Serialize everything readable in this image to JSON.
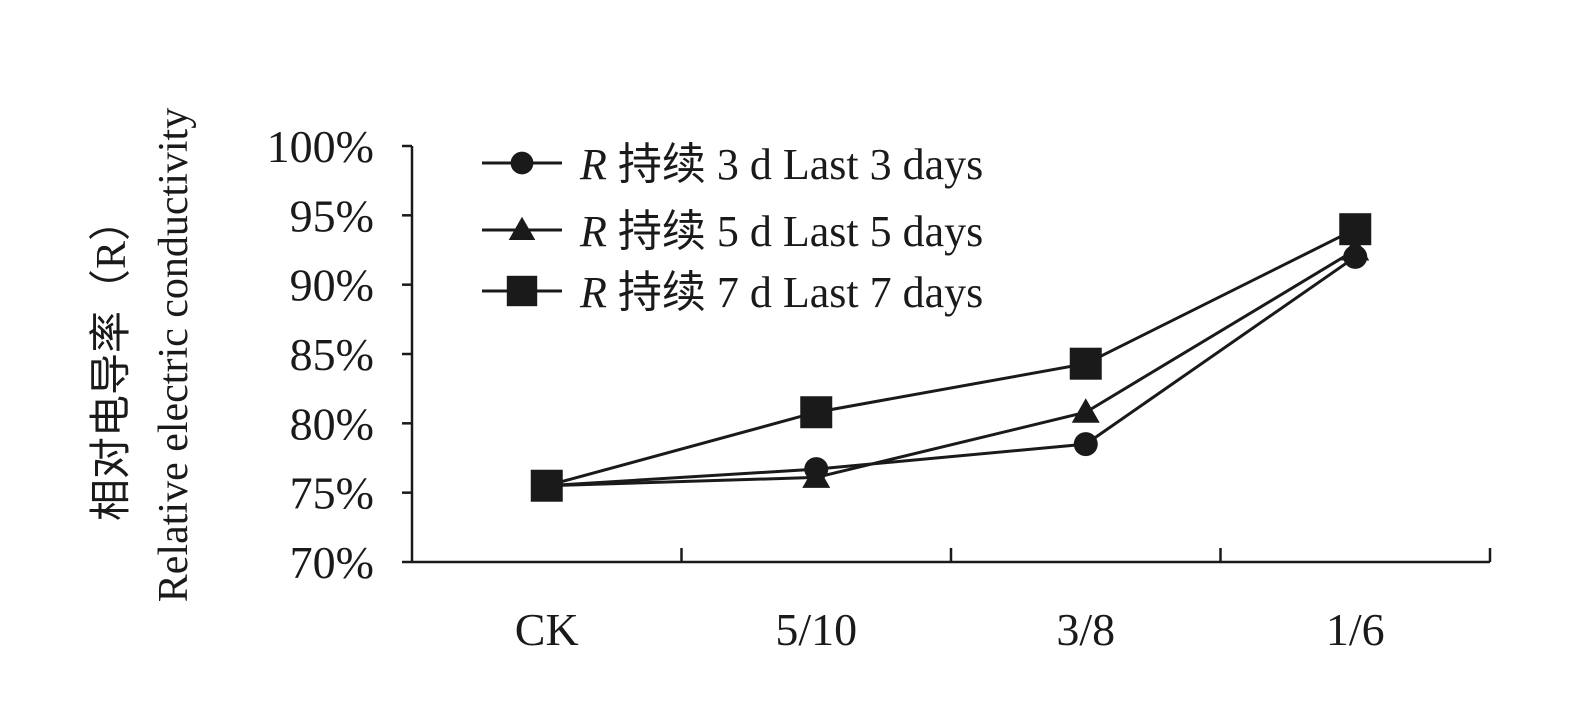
{
  "chart_data": {
    "type": "line",
    "categories": [
      "CK",
      "5/10",
      "3/8",
      "1/6"
    ],
    "ylabel_cn": "相对电导率（R）",
    "ylabel_en": "Relative electric conductivity",
    "ylim": [
      0.7,
      1.0
    ],
    "y_ticks": [
      "70%",
      "75%",
      "80%",
      "85%",
      "90%",
      "95%",
      "100%"
    ],
    "y_tick_values": [
      0.7,
      0.75,
      0.8,
      0.85,
      0.9,
      0.95,
      1.0
    ],
    "grid": false,
    "legend_position": "top-left",
    "series": [
      {
        "name_var": "R",
        "name_rest": " 持续 3 d Last 3 days",
        "marker": "circle",
        "values": [
          0.755,
          0.767,
          0.785,
          0.92
        ]
      },
      {
        "name_var": "R",
        "name_rest": " 持续 5 d Last 5 days",
        "marker": "triangle",
        "values": [
          0.755,
          0.761,
          0.808,
          0.925
        ]
      },
      {
        "name_var": "R",
        "name_rest": " 持续 7 d Last 7 days",
        "marker": "square",
        "values": [
          0.755,
          0.808,
          0.843,
          0.94
        ]
      }
    ],
    "colors": {
      "line": "#1a1a1a",
      "axis": "#1a1a1a"
    }
  }
}
